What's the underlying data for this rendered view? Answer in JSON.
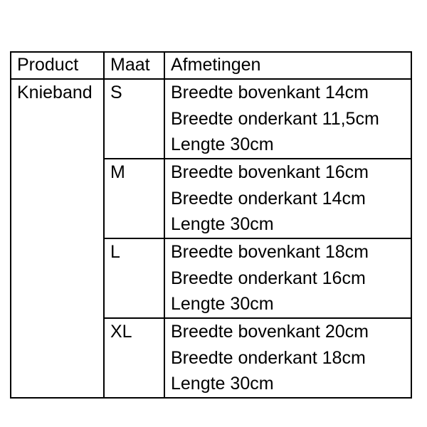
{
  "table": {
    "headers": [
      "Product",
      "Maat",
      "Afmetingen"
    ],
    "product": "Knieband",
    "rows": [
      {
        "size": "S",
        "lines": [
          "Breedte bovenkant 14cm",
          "Breedte onderkant 11,5cm",
          "Lengte 30cm"
        ]
      },
      {
        "size": "M",
        "lines": [
          "Breedte bovenkant 16cm",
          "Breedte onderkant 14cm",
          "Lengte 30cm"
        ]
      },
      {
        "size": "L",
        "lines": [
          "Breedte bovenkant 18cm",
          "Breedte onderkant 16cm",
          "Lengte 30cm"
        ]
      },
      {
        "size": "XL",
        "lines": [
          "Breedte bovenkant 20cm",
          "Breedte onderkant 18cm",
          "Lengte 30cm"
        ]
      }
    ],
    "colors": {
      "border": "#000000",
      "text": "#000000",
      "background": "#ffffff"
    }
  }
}
